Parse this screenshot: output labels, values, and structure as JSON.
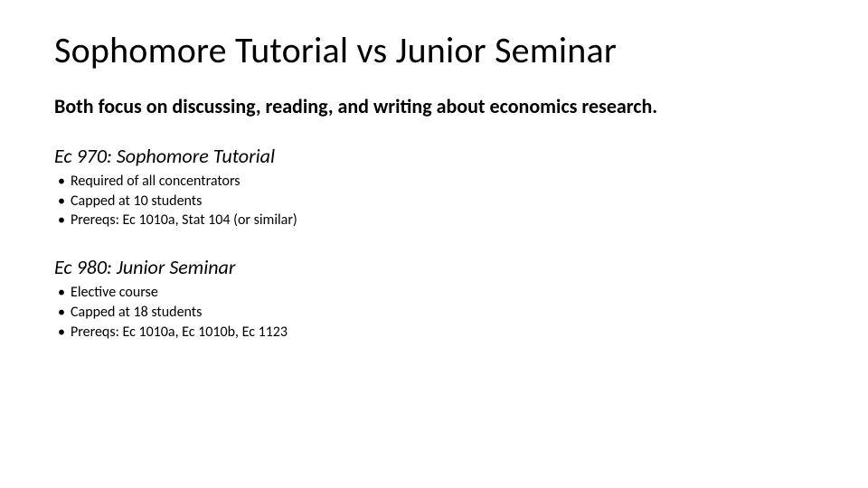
{
  "colors": {
    "background": "#ffffff",
    "text": "#000000"
  },
  "typography": {
    "title_fontsize": 40,
    "title_weight": 400,
    "intro_fontsize": 22,
    "intro_weight": 700,
    "heading_fontsize": 22,
    "heading_style": "italic",
    "bullet_fontsize": 16,
    "font_family": "Calibri"
  },
  "title": "Sophomore Tutorial vs Junior Seminar",
  "intro": "Both focus on discussing, reading, and writing about economics research.",
  "sections": [
    {
      "heading": "Ec 970: Sophomore Tutorial",
      "bullets": [
        "Required of all concentrators",
        "Capped at 10 students",
        "Prereqs: Ec 1010a, Stat 104 (or similar)"
      ]
    },
    {
      "heading": "Ec 980: Junior Seminar",
      "bullets": [
        "Elective course",
        "Capped at 18 students",
        "Prereqs: Ec 1010a, Ec 1010b, Ec 1123"
      ]
    }
  ]
}
